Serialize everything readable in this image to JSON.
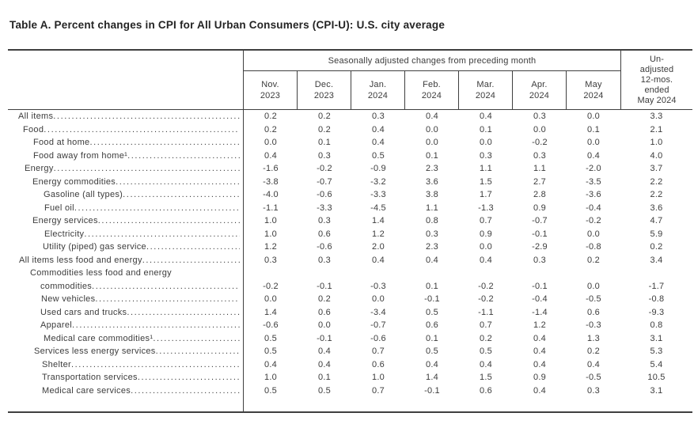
{
  "title": "Table A. Percent changes in CPI for All Urban Consumers (CPI-U): U.S. city average",
  "table": {
    "group_header": "Seasonally adjusted changes from preceding month",
    "month_columns": [
      {
        "line1": "Nov.",
        "line2": "2023"
      },
      {
        "line1": "Dec.",
        "line2": "2023"
      },
      {
        "line1": "Jan.",
        "line2": "2024"
      },
      {
        "line1": "Feb.",
        "line2": "2024"
      },
      {
        "line1": "Mar.",
        "line2": "2024"
      },
      {
        "line1": "Apr.",
        "line2": "2024"
      },
      {
        "line1": "May",
        "line2": "2024"
      }
    ],
    "unadjusted_header_lines": [
      "Un-",
      "adjusted",
      "12-mos.",
      "ended",
      "May 2024"
    ],
    "rows": [
      {
        "label": "All items",
        "indent": 13,
        "values": [
          "0.2",
          "0.2",
          "0.3",
          "0.4",
          "0.4",
          "0.3",
          "0.0"
        ],
        "unadjusted": "3.3"
      },
      {
        "label": "Food",
        "indent": 19,
        "values": [
          "0.2",
          "0.2",
          "0.4",
          "0.0",
          "0.1",
          "0.0",
          "0.1"
        ],
        "unadjusted": "2.1"
      },
      {
        "label": "Food at home",
        "indent": 32,
        "values": [
          "0.0",
          "0.1",
          "0.4",
          "0.0",
          "0.0",
          "-0.2",
          "0.0"
        ],
        "unadjusted": "1.0"
      },
      {
        "label": "Food away from home¹",
        "indent": 32,
        "values": [
          "0.4",
          "0.3",
          "0.5",
          "0.1",
          "0.3",
          "0.3",
          "0.4"
        ],
        "unadjusted": "4.0"
      },
      {
        "label": "Energy",
        "indent": 21,
        "values": [
          "-1.6",
          "-0.2",
          "-0.9",
          "2.3",
          "1.1",
          "1.1",
          "-2.0"
        ],
        "unadjusted": "3.7"
      },
      {
        "label": "Energy commodities",
        "indent": 31,
        "values": [
          "-3.8",
          "-0.7",
          "-3.2",
          "3.6",
          "1.5",
          "2.7",
          "-3.5"
        ],
        "unadjusted": "2.2"
      },
      {
        "label": "Gasoline (all types)",
        "indent": 45,
        "values": [
          "-4.0",
          "-0.6",
          "-3.3",
          "3.8",
          "1.7",
          "2.8",
          "-3.6"
        ],
        "unadjusted": "2.2"
      },
      {
        "label": "Fuel oil",
        "indent": 46,
        "values": [
          "-1.1",
          "-3.3",
          "-4.5",
          "1.1",
          "-1.3",
          "0.9",
          "-0.4"
        ],
        "unadjusted": "3.6"
      },
      {
        "label": "Energy services",
        "indent": 31,
        "values": [
          "1.0",
          "0.3",
          "1.4",
          "0.8",
          "0.7",
          "-0.7",
          "-0.2"
        ],
        "unadjusted": "4.7"
      },
      {
        "label": "Electricity",
        "indent": 46,
        "values": [
          "1.0",
          "0.6",
          "1.2",
          "0.3",
          "0.9",
          "-0.1",
          "0.0"
        ],
        "unadjusted": "5.9"
      },
      {
        "label": "Utility (piped) gas service",
        "indent": 44,
        "values": [
          "1.2",
          "-0.6",
          "2.0",
          "2.3",
          "0.0",
          "-2.9",
          "-0.8"
        ],
        "unadjusted": "0.2"
      },
      {
        "label": "All items less food and energy",
        "indent": 14,
        "values": [
          "0.3",
          "0.3",
          "0.4",
          "0.4",
          "0.4",
          "0.3",
          "0.2"
        ],
        "unadjusted": "3.4"
      },
      {
        "label": "Commodities less food and energy",
        "label2": "commodities",
        "indent": 28,
        "values": [
          "-0.2",
          "-0.1",
          "-0.3",
          "0.1",
          "-0.2",
          "-0.1",
          "0.0"
        ],
        "unadjusted": "-1.7"
      },
      {
        "label": "New vehicles",
        "indent": 42,
        "values": [
          "0.0",
          "0.2",
          "0.0",
          "-0.1",
          "-0.2",
          "-0.4",
          "-0.5"
        ],
        "unadjusted": "-0.8"
      },
      {
        "label": "Used cars and trucks",
        "indent": 41,
        "values": [
          "1.4",
          "0.6",
          "-3.4",
          "0.5",
          "-1.1",
          "-1.4",
          "0.6"
        ],
        "unadjusted": "-9.3"
      },
      {
        "label": "Apparel",
        "indent": 41,
        "values": [
          "-0.6",
          "0.0",
          "-0.7",
          "0.6",
          "0.7",
          "1.2",
          "-0.3"
        ],
        "unadjusted": "0.8"
      },
      {
        "label": "Medical care commodities¹",
        "indent": 45,
        "values": [
          "0.5",
          "-0.1",
          "-0.6",
          "0.1",
          "0.2",
          "0.4",
          "1.3"
        ],
        "unadjusted": "3.1"
      },
      {
        "label": "Services less energy services",
        "indent": 33,
        "values": [
          "0.5",
          "0.4",
          "0.7",
          "0.5",
          "0.5",
          "0.4",
          "0.2"
        ],
        "unadjusted": "5.3"
      },
      {
        "label": "Shelter",
        "indent": 43,
        "values": [
          "0.4",
          "0.4",
          "0.6",
          "0.4",
          "0.4",
          "0.4",
          "0.4"
        ],
        "unadjusted": "5.4"
      },
      {
        "label": "Transportation services",
        "indent": 43,
        "values": [
          "1.0",
          "0.1",
          "1.0",
          "1.4",
          "1.5",
          "0.9",
          "-0.5"
        ],
        "unadjusted": "10.5"
      },
      {
        "label": "Medical care services",
        "indent": 43,
        "values": [
          "0.5",
          "0.5",
          "0.7",
          "-0.1",
          "0.6",
          "0.4",
          "0.3"
        ],
        "unadjusted": "3.1"
      }
    ]
  }
}
